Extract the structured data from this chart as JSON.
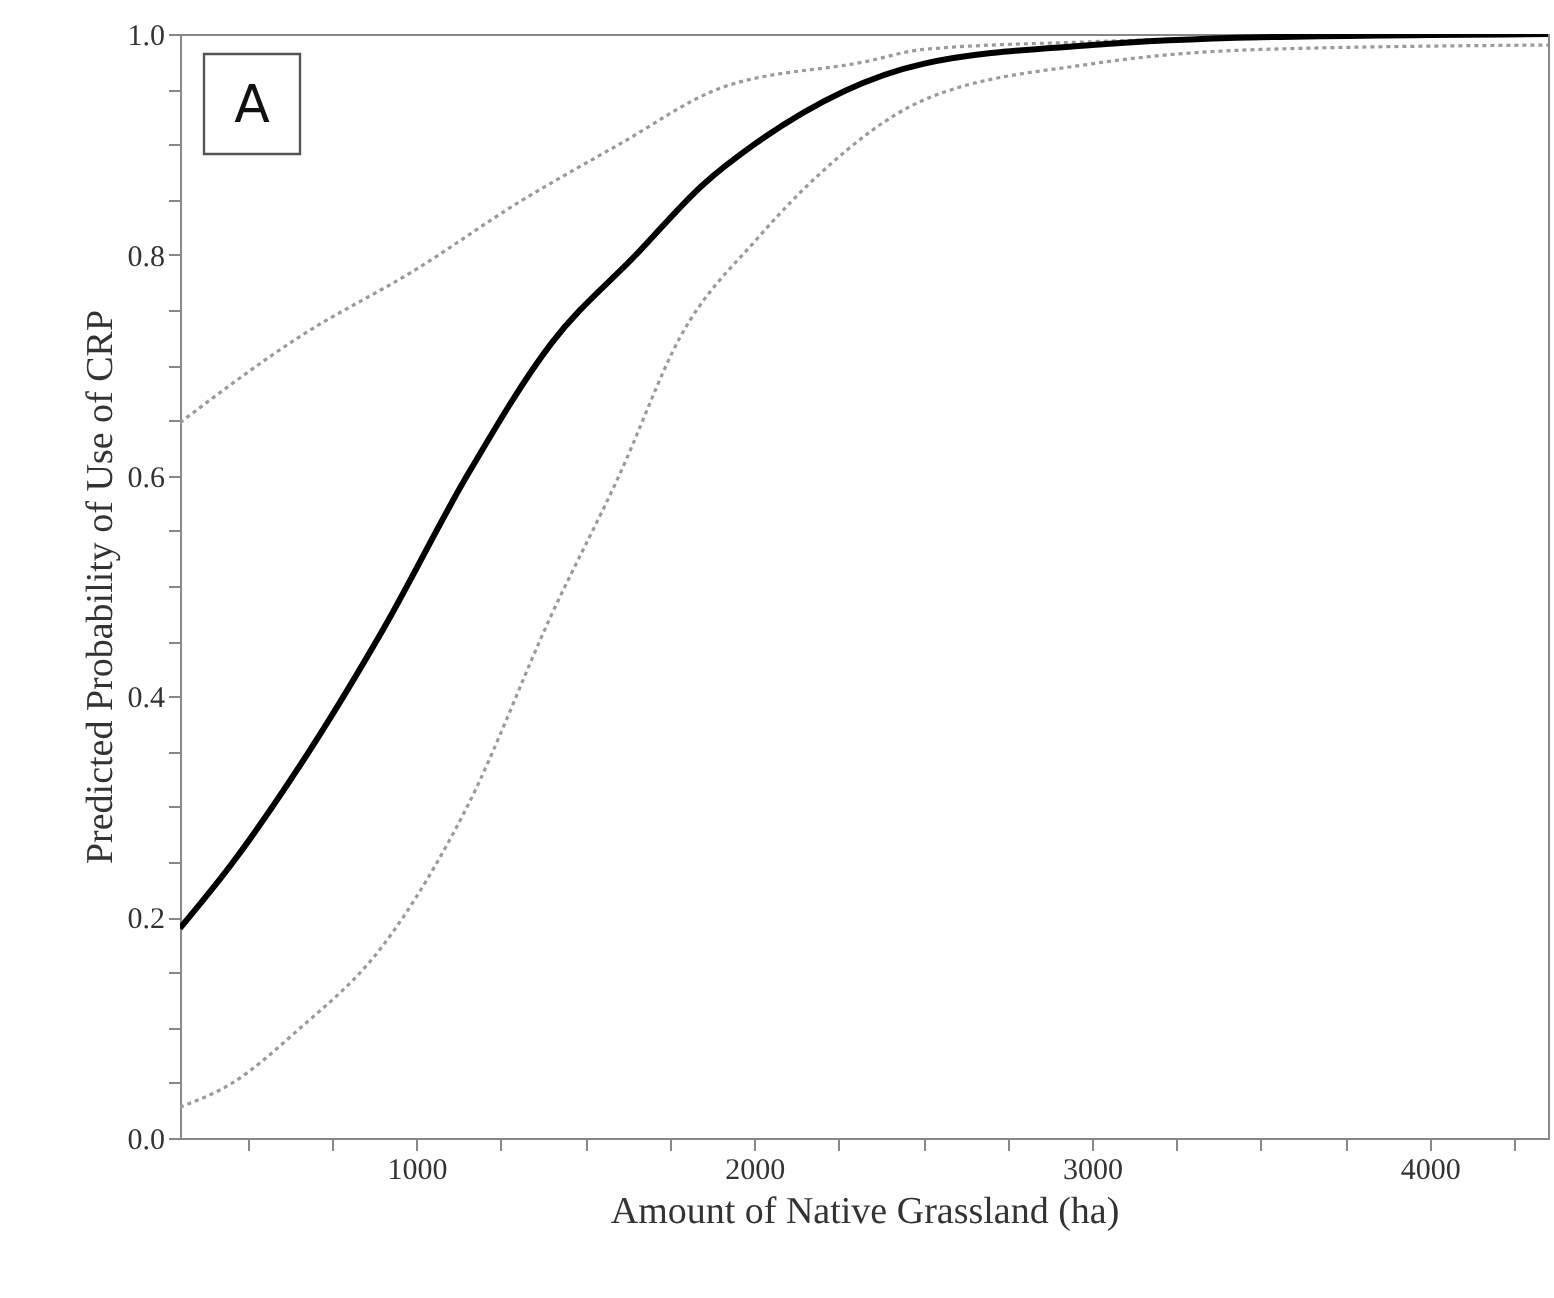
{
  "chart_data": {
    "type": "line",
    "xlabel": "Amount of Native Grassland (ha)",
    "ylabel": "Predicted Probability of Use of CRP",
    "annotations": [
      "A"
    ],
    "xlim": [
      300,
      4350
    ],
    "ylim": [
      0,
      1
    ],
    "xticks": [
      {
        "value": 500,
        "label": null
      },
      {
        "value": 750,
        "label": null
      },
      1000,
      {
        "value": 1250,
        "label": null
      },
      {
        "value": 1500,
        "label": null
      },
      {
        "value": 1750,
        "label": null
      },
      2000,
      {
        "value": 2250,
        "label": null
      },
      {
        "value": 2500,
        "label": null
      },
      {
        "value": 2750,
        "label": null
      },
      3000,
      {
        "value": 3250,
        "label": null
      },
      {
        "value": 3500,
        "label": null
      },
      {
        "value": 3750,
        "label": null
      },
      4000,
      {
        "value": 4250,
        "label": null
      }
    ],
    "yticks": [
      {
        "value": 0,
        "label": "0.0"
      },
      {
        "value": 0.05,
        "label": null
      },
      {
        "value": 0.1,
        "label": null
      },
      {
        "value": 0.15,
        "label": null
      },
      0.2,
      {
        "value": 0.25,
        "label": null
      },
      {
        "value": 0.3,
        "label": null
      },
      {
        "value": 0.35,
        "label": null
      },
      0.4,
      {
        "value": 0.45,
        "label": null
      },
      {
        "value": 0.5,
        "label": null
      },
      {
        "value": 0.55,
        "label": null
      },
      0.6,
      {
        "value": 0.65,
        "label": null
      },
      {
        "value": 0.7,
        "label": null
      },
      {
        "value": 0.75,
        "label": null
      },
      0.8,
      {
        "value": 0.85,
        "label": null
      },
      {
        "value": 0.9,
        "label": null
      },
      {
        "value": 0.95,
        "label": null
      },
      {
        "value": 1,
        "label": "1.0"
      }
    ],
    "grid": false,
    "series": [
      {
        "color": "#9a9a9a",
        "line_style": "dotted",
        "x": [
          300,
          650,
          1000,
          1300,
          1600,
          1900,
          2330,
          2500,
          3000,
          3500,
          4350
        ],
        "values": [
          0.648,
          0.725,
          0.787,
          0.847,
          0.9,
          0.951,
          0.975,
          0.986,
          0.993,
          0.997,
          1.0
        ]
      },
      {
        "color": "#9a9a9a",
        "line_style": "dotted",
        "x": [
          300,
          450,
          650,
          900,
          1150,
          1400,
          1600,
          1780,
          2010,
          2200,
          2500,
          3000,
          3500,
          4350
        ],
        "values": [
          0.028,
          0.049,
          0.098,
          0.174,
          0.3,
          0.474,
          0.6,
          0.725,
          0.815,
          0.875,
          0.94,
          0.973,
          0.986,
          0.99
        ]
      },
      {
        "color": "#000000",
        "line_style": "solid",
        "x": [
          300,
          450,
          650,
          900,
          1150,
          1400,
          1650,
          1850,
          2000,
          2500,
          3000,
          3500,
          4350
        ],
        "values": [
          0.19,
          0.247,
          0.335,
          0.46,
          0.6,
          0.72,
          0.8,
          0.864,
          0.9,
          0.973,
          0.99,
          0.997,
          1.0
        ]
      }
    ]
  }
}
